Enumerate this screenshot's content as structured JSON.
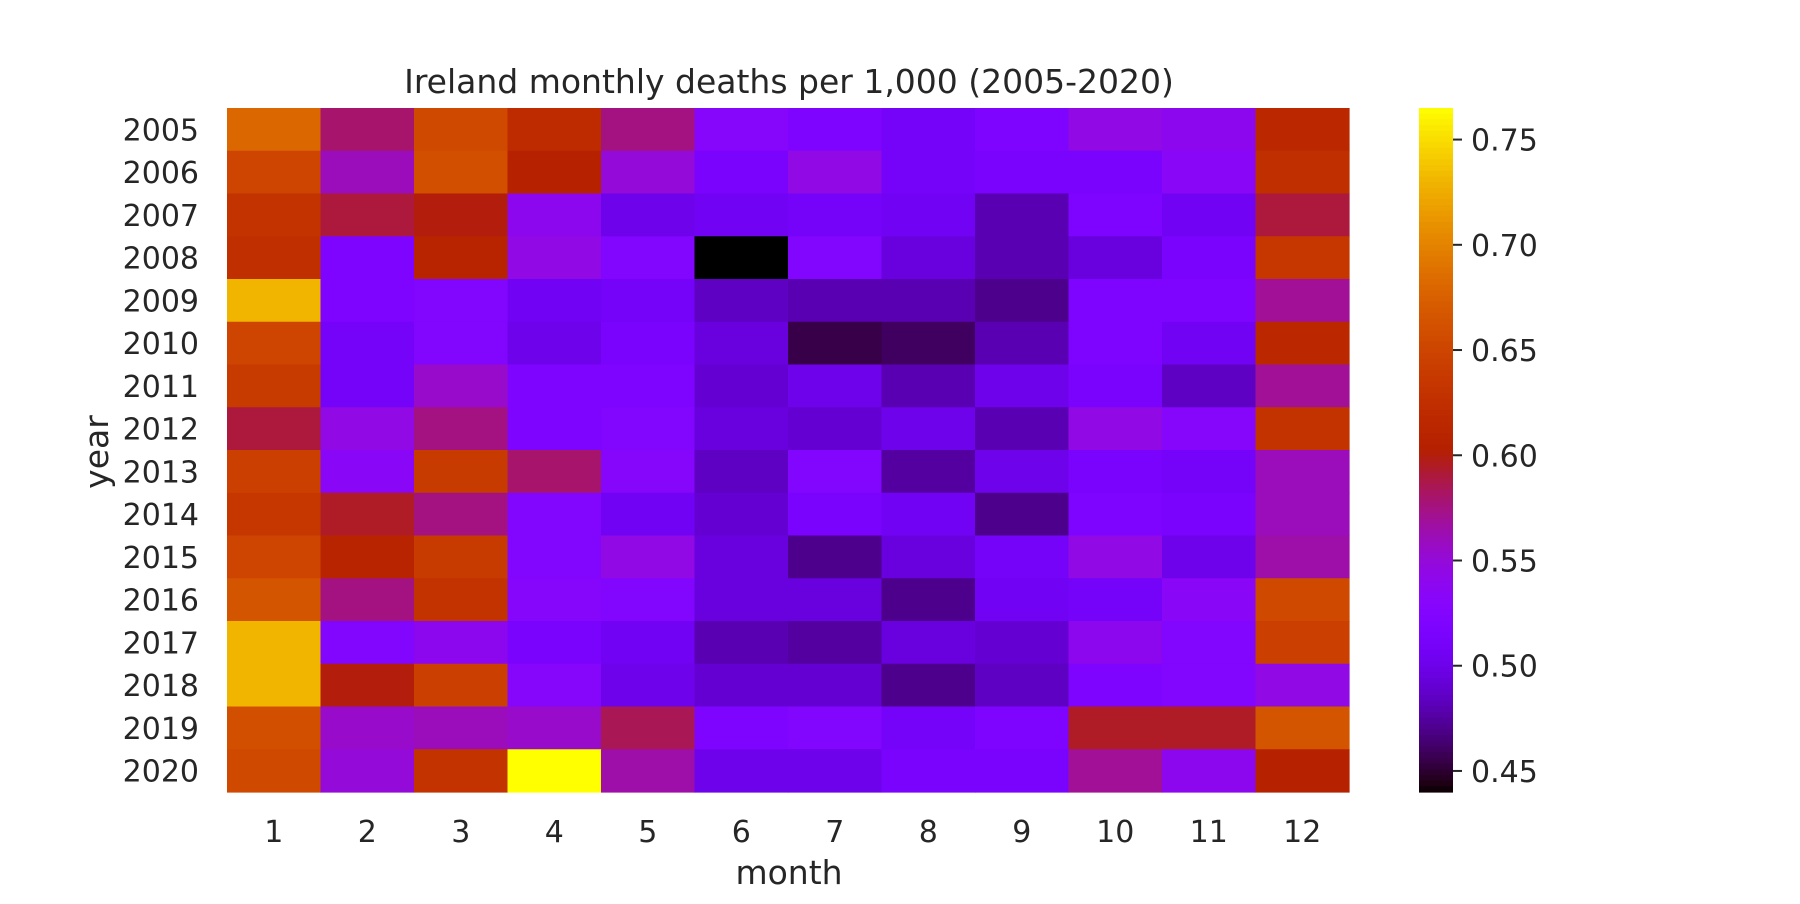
{
  "chart_data": {
    "type": "heatmap",
    "title": "Ireland monthly deaths per 1,000 (2005-2020)",
    "xlabel": "month",
    "ylabel": "year",
    "x_categories": [
      "1",
      "2",
      "3",
      "4",
      "5",
      "6",
      "7",
      "8",
      "9",
      "10",
      "11",
      "12"
    ],
    "y_categories": [
      "2005",
      "2006",
      "2007",
      "2008",
      "2009",
      "2010",
      "2011",
      "2012",
      "2013",
      "2014",
      "2015",
      "2016",
      "2017",
      "2018",
      "2019",
      "2020"
    ],
    "colorscale": "gnuplot",
    "vmin": 0.44,
    "vmax": 0.765,
    "colorbar_ticks": [
      "0.45",
      "0.50",
      "0.55",
      "0.60",
      "0.65",
      "0.70",
      "0.75"
    ],
    "values": [
      [
        0.68,
        0.58,
        0.655,
        0.62,
        0.575,
        0.53,
        0.52,
        0.51,
        0.52,
        0.545,
        0.54,
        0.615
      ],
      [
        0.65,
        0.56,
        0.66,
        0.605,
        0.55,
        0.515,
        0.545,
        0.51,
        0.515,
        0.515,
        0.535,
        0.625
      ],
      [
        0.63,
        0.59,
        0.6,
        0.54,
        0.5,
        0.505,
        0.51,
        0.505,
        0.48,
        0.52,
        0.505,
        0.59
      ],
      [
        0.625,
        0.52,
        0.61,
        0.545,
        0.525,
        0.44,
        0.525,
        0.495,
        0.48,
        0.495,
        0.515,
        0.635
      ],
      [
        0.73,
        0.52,
        0.525,
        0.505,
        0.51,
        0.485,
        0.48,
        0.48,
        0.47,
        0.52,
        0.52,
        0.57
      ],
      [
        0.65,
        0.51,
        0.525,
        0.5,
        0.515,
        0.495,
        0.455,
        0.46,
        0.48,
        0.52,
        0.505,
        0.615
      ],
      [
        0.64,
        0.51,
        0.555,
        0.52,
        0.52,
        0.49,
        0.5,
        0.48,
        0.5,
        0.515,
        0.485,
        0.57
      ],
      [
        0.59,
        0.545,
        0.575,
        0.52,
        0.525,
        0.495,
        0.49,
        0.5,
        0.48,
        0.545,
        0.53,
        0.63
      ],
      [
        0.645,
        0.535,
        0.64,
        0.58,
        0.53,
        0.485,
        0.525,
        0.475,
        0.5,
        0.515,
        0.51,
        0.56
      ],
      [
        0.635,
        0.595,
        0.575,
        0.525,
        0.505,
        0.49,
        0.515,
        0.505,
        0.47,
        0.52,
        0.515,
        0.56
      ],
      [
        0.65,
        0.61,
        0.64,
        0.525,
        0.545,
        0.495,
        0.47,
        0.495,
        0.51,
        0.545,
        0.5,
        0.565
      ],
      [
        0.665,
        0.575,
        0.63,
        0.53,
        0.525,
        0.495,
        0.495,
        0.47,
        0.505,
        0.51,
        0.535,
        0.655
      ],
      [
        0.73,
        0.525,
        0.54,
        0.515,
        0.505,
        0.48,
        0.475,
        0.495,
        0.49,
        0.54,
        0.525,
        0.645
      ],
      [
        0.73,
        0.6,
        0.645,
        0.53,
        0.5,
        0.49,
        0.49,
        0.47,
        0.485,
        0.52,
        0.525,
        0.545
      ],
      [
        0.66,
        0.555,
        0.56,
        0.555,
        0.585,
        0.52,
        0.525,
        0.51,
        0.52,
        0.595,
        0.595,
        0.665
      ],
      [
        0.655,
        0.55,
        0.63,
        0.765,
        0.565,
        0.5,
        0.5,
        0.515,
        0.515,
        0.57,
        0.54,
        0.605
      ]
    ]
  }
}
